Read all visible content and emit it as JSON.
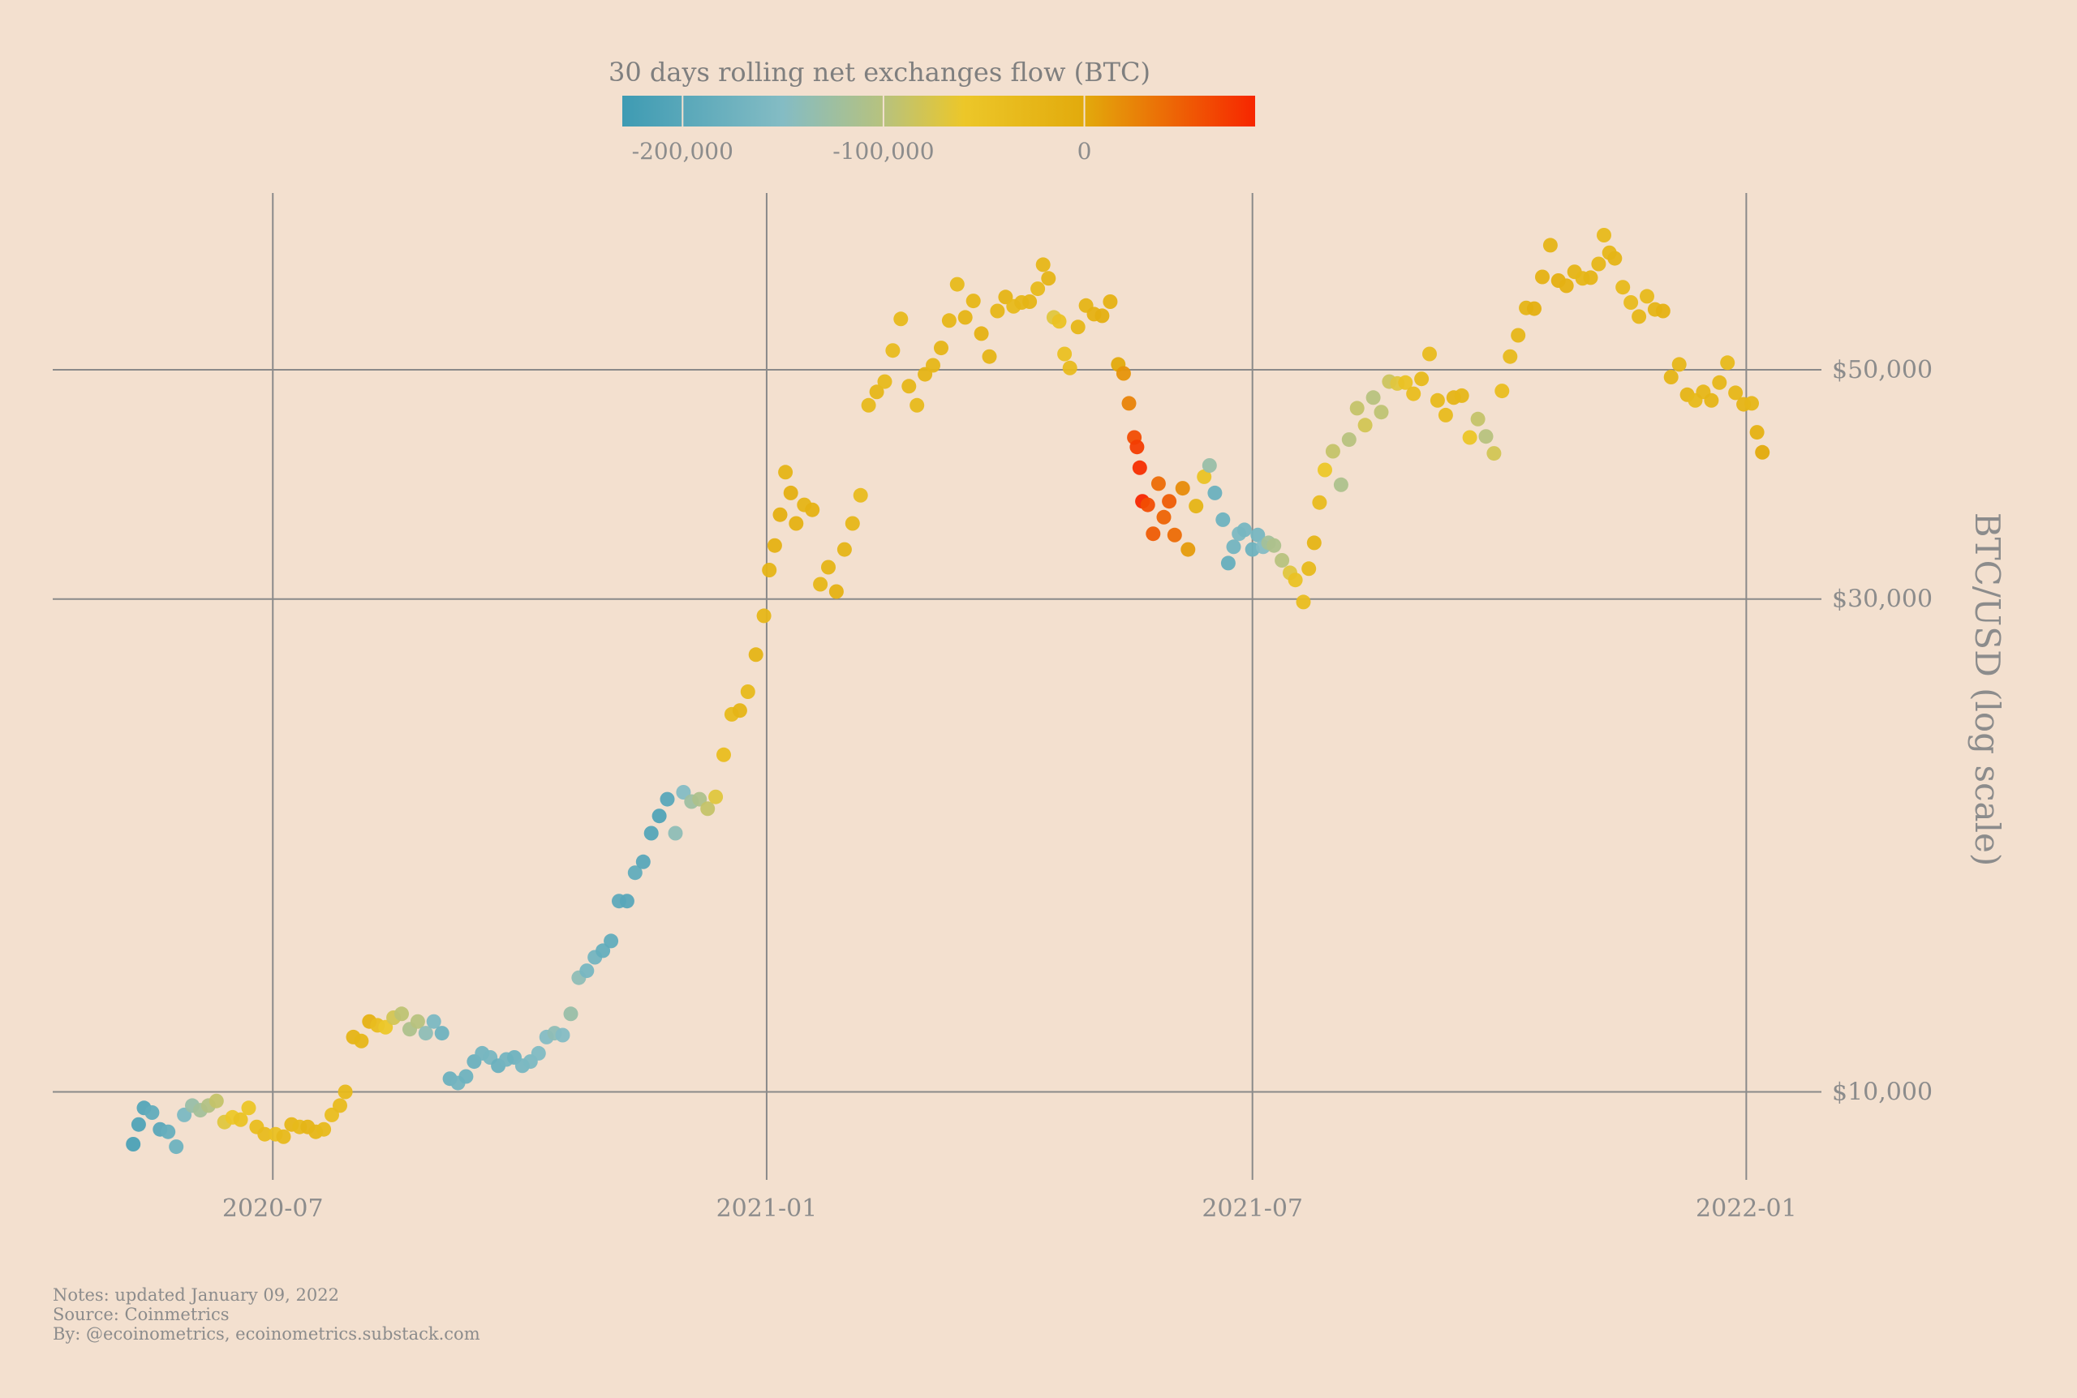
{
  "chart_data": {
    "type": "scatter",
    "colorbar": {
      "title": "30 days rolling net exchanges flow (BTC)",
      "ticks": [
        {
          "value": -200000,
          "label": "-200,000"
        },
        {
          "value": -100000,
          "label": "-100,000"
        },
        {
          "value": 0,
          "label": "0"
        }
      ],
      "range": [
        -230000,
        85000
      ],
      "stops": [
        {
          "value": -230000,
          "color": "#3e9bb3"
        },
        {
          "value": -150000,
          "color": "#84bcc4"
        },
        {
          "value": -100000,
          "color": "#b7c27e"
        },
        {
          "value": -60000,
          "color": "#ecc729"
        },
        {
          "value": 0,
          "color": "#e2aa0c"
        },
        {
          "value": 40000,
          "color": "#ec6c06"
        },
        {
          "value": 85000,
          "color": "#f72600"
        }
      ]
    },
    "x_ticks": [
      {
        "date": "2020-07-01",
        "label": "2020-07"
      },
      {
        "date": "2021-01-01",
        "label": "2021-01"
      },
      {
        "date": "2021-07-01",
        "label": "2021-07"
      },
      {
        "date": "2022-01-01",
        "label": "2022-01"
      }
    ],
    "y_ticks": [
      {
        "value": 10000,
        "label": "$10,000"
      },
      {
        "value": 30000,
        "label": "$30,000"
      },
      {
        "value": 50000,
        "label": "$50,000"
      }
    ],
    "ylabel": "BTC/USD (log scale)",
    "yscale": "log",
    "xlim": [
      "2020-04-10",
      "2022-01-29"
    ],
    "ylim": [
      8600,
      67500
    ],
    "grid": true,
    "points": [
      [
        "2020-05-10",
        8900,
        -215000
      ],
      [
        "2020-05-12",
        9300,
        -210000
      ],
      [
        "2020-05-14",
        9650,
        -205000
      ],
      [
        "2020-05-17",
        9550,
        -190000
      ],
      [
        "2020-05-20",
        9200,
        -200000
      ],
      [
        "2020-05-23",
        9150,
        -185000
      ],
      [
        "2020-05-26",
        8850,
        -175000
      ],
      [
        "2020-05-29",
        9500,
        -160000
      ],
      [
        "2020-06-01",
        9700,
        -130000
      ],
      [
        "2020-06-04",
        9600,
        -120000
      ],
      [
        "2020-06-07",
        9700,
        -105000
      ],
      [
        "2020-06-10",
        9800,
        -90000
      ],
      [
        "2020-06-13",
        9350,
        -70000
      ],
      [
        "2020-06-16",
        9450,
        -60000
      ],
      [
        "2020-06-19",
        9400,
        -50000
      ],
      [
        "2020-06-22",
        9650,
        -55000
      ],
      [
        "2020-06-25",
        9250,
        -40000
      ],
      [
        "2020-06-28",
        9100,
        -35000
      ],
      [
        "2020-07-02",
        9100,
        -45000
      ],
      [
        "2020-07-05",
        9050,
        -30000
      ],
      [
        "2020-07-08",
        9300,
        -25000
      ],
      [
        "2020-07-11",
        9250,
        -30000
      ],
      [
        "2020-07-14",
        9250,
        -20000
      ],
      [
        "2020-07-17",
        9150,
        -25000
      ],
      [
        "2020-07-20",
        9200,
        -30000
      ],
      [
        "2020-07-23",
        9500,
        -40000
      ],
      [
        "2020-07-26",
        9700,
        -35000
      ],
      [
        "2020-07-28",
        10000,
        -30000
      ],
      [
        "2020-07-31",
        11300,
        -20000
      ],
      [
        "2020-08-03",
        11200,
        -25000
      ],
      [
        "2020-08-06",
        11700,
        -15000
      ],
      [
        "2020-08-09",
        11600,
        -40000
      ],
      [
        "2020-08-12",
        11550,
        -60000
      ],
      [
        "2020-08-15",
        11800,
        -80000
      ],
      [
        "2020-08-18",
        11900,
        -95000
      ],
      [
        "2020-08-21",
        11500,
        -110000
      ],
      [
        "2020-08-24",
        11700,
        -100000
      ],
      [
        "2020-08-27",
        11400,
        -140000
      ],
      [
        "2020-08-30",
        11700,
        -160000
      ],
      [
        "2020-09-02",
        11400,
        -175000
      ],
      [
        "2020-09-05",
        10300,
        -180000
      ],
      [
        "2020-09-08",
        10200,
        -170000
      ],
      [
        "2020-09-11",
        10350,
        -175000
      ],
      [
        "2020-09-14",
        10700,
        -180000
      ],
      [
        "2020-09-17",
        10900,
        -170000
      ],
      [
        "2020-09-20",
        10800,
        -165000
      ],
      [
        "2020-09-23",
        10600,
        -180000
      ],
      [
        "2020-09-26",
        10750,
        -170000
      ],
      [
        "2020-09-29",
        10800,
        -175000
      ],
      [
        "2020-10-02",
        10600,
        -165000
      ],
      [
        "2020-10-05",
        10700,
        -160000
      ],
      [
        "2020-10-08",
        10900,
        -155000
      ],
      [
        "2020-10-11",
        11300,
        -150000
      ],
      [
        "2020-10-14",
        11400,
        -140000
      ],
      [
        "2020-10-17",
        11350,
        -150000
      ],
      [
        "2020-10-20",
        11900,
        -130000
      ],
      [
        "2020-10-23",
        12900,
        -140000
      ],
      [
        "2020-10-26",
        13100,
        -165000
      ],
      [
        "2020-10-29",
        13500,
        -170000
      ],
      [
        "2020-11-01",
        13700,
        -185000
      ],
      [
        "2020-11-04",
        14000,
        -190000
      ],
      [
        "2020-11-07",
        15300,
        -195000
      ],
      [
        "2020-11-10",
        15300,
        -200000
      ],
      [
        "2020-11-13",
        16300,
        -190000
      ],
      [
        "2020-11-16",
        16700,
        -200000
      ],
      [
        "2020-11-19",
        17800,
        -205000
      ],
      [
        "2020-11-22",
        18500,
        -210000
      ],
      [
        "2020-11-25",
        19200,
        -200000
      ],
      [
        "2020-11-28",
        17800,
        -140000
      ],
      [
        "2020-12-01",
        19500,
        -150000
      ],
      [
        "2020-12-04",
        19100,
        -125000
      ],
      [
        "2020-12-07",
        19200,
        -110000
      ],
      [
        "2020-12-10",
        18800,
        -90000
      ],
      [
        "2020-12-13",
        19300,
        -70000
      ],
      [
        "2020-12-16",
        21200,
        -40000
      ],
      [
        "2020-12-19",
        23200,
        -30000
      ],
      [
        "2020-12-22",
        23400,
        -20000
      ],
      [
        "2020-12-25",
        24400,
        -30000
      ],
      [
        "2020-12-28",
        26500,
        -20000
      ],
      [
        "2020-12-31",
        28900,
        -25000
      ],
      [
        "2021-01-02",
        32000,
        -20000
      ],
      [
        "2021-01-04",
        33800,
        -15000
      ],
      [
        "2021-01-06",
        36200,
        -10000
      ],
      [
        "2021-01-08",
        39800,
        -20000
      ],
      [
        "2021-01-10",
        38000,
        -10000
      ],
      [
        "2021-01-12",
        35500,
        -15000
      ],
      [
        "2021-01-15",
        37000,
        -20000
      ],
      [
        "2021-01-18",
        36600,
        -15000
      ],
      [
        "2021-01-21",
        31000,
        -25000
      ],
      [
        "2021-01-24",
        32200,
        -20000
      ],
      [
        "2021-01-27",
        30500,
        -15000
      ],
      [
        "2021-01-30",
        33500,
        -20000
      ],
      [
        "2021-02-02",
        35500,
        -25000
      ],
      [
        "2021-02-05",
        37800,
        -35000
      ],
      [
        "2021-02-08",
        46200,
        -30000
      ],
      [
        "2021-02-11",
        47600,
        -25000
      ],
      [
        "2021-02-14",
        48700,
        -30000
      ],
      [
        "2021-02-17",
        52200,
        -35000
      ],
      [
        "2021-02-20",
        56000,
        -30000
      ],
      [
        "2021-02-23",
        48200,
        -25000
      ],
      [
        "2021-02-26",
        46200,
        -30000
      ],
      [
        "2021-03-01",
        49500,
        -20000
      ],
      [
        "2021-03-04",
        50500,
        -25000
      ],
      [
        "2021-03-07",
        52500,
        -20000
      ],
      [
        "2021-03-10",
        55800,
        -25000
      ],
      [
        "2021-03-13",
        60500,
        -30000
      ],
      [
        "2021-03-16",
        56200,
        -20000
      ],
      [
        "2021-03-19",
        58300,
        -25000
      ],
      [
        "2021-03-22",
        54200,
        -15000
      ],
      [
        "2021-03-25",
        51500,
        -20000
      ],
      [
        "2021-03-28",
        57000,
        -25000
      ],
      [
        "2021-03-31",
        58800,
        -20000
      ],
      [
        "2021-04-03",
        57600,
        -30000
      ],
      [
        "2021-04-06",
        58100,
        -25000
      ],
      [
        "2021-04-09",
        58200,
        -20000
      ],
      [
        "2021-04-12",
        59900,
        -30000
      ],
      [
        "2021-04-14",
        63200,
        -25000
      ],
      [
        "2021-04-16",
        61300,
        -20000
      ],
      [
        "2021-04-18",
        56200,
        -70000
      ],
      [
        "2021-04-20",
        55700,
        -50000
      ],
      [
        "2021-04-22",
        51800,
        -45000
      ],
      [
        "2021-04-24",
        50200,
        -35000
      ],
      [
        "2021-04-27",
        55000,
        -25000
      ],
      [
        "2021-04-30",
        57700,
        -20000
      ],
      [
        "2021-05-03",
        56600,
        -15000
      ],
      [
        "2021-05-06",
        56400,
        -10000
      ],
      [
        "2021-05-09",
        58200,
        -15000
      ],
      [
        "2021-05-12",
        50600,
        0
      ],
      [
        "2021-05-14",
        49600,
        15000
      ],
      [
        "2021-05-16",
        46400,
        25000
      ],
      [
        "2021-05-18",
        43000,
        60000
      ],
      [
        "2021-05-19",
        42100,
        70000
      ],
      [
        "2021-05-20",
        40200,
        80000
      ],
      [
        "2021-05-21",
        37300,
        85000
      ],
      [
        "2021-05-23",
        37000,
        60000
      ],
      [
        "2021-05-25",
        34700,
        50000
      ],
      [
        "2021-05-27",
        38800,
        40000
      ],
      [
        "2021-05-29",
        36000,
        45000
      ],
      [
        "2021-05-31",
        37300,
        50000
      ],
      [
        "2021-06-02",
        34600,
        40000
      ],
      [
        "2021-06-05",
        38400,
        20000
      ],
      [
        "2021-06-07",
        33500,
        10000
      ],
      [
        "2021-06-10",
        36900,
        -20000
      ],
      [
        "2021-06-13",
        39400,
        -50000
      ],
      [
        "2021-06-15",
        40400,
        -130000
      ],
      [
        "2021-06-17",
        38000,
        -180000
      ],
      [
        "2021-06-20",
        35800,
        -175000
      ],
      [
        "2021-06-22",
        32500,
        -185000
      ],
      [
        "2021-06-24",
        33700,
        -170000
      ],
      [
        "2021-06-26",
        34700,
        -160000
      ],
      [
        "2021-06-28",
        35000,
        -165000
      ],
      [
        "2021-07-01",
        33500,
        -175000
      ],
      [
        "2021-07-03",
        34600,
        -165000
      ],
      [
        "2021-07-05",
        33700,
        -150000
      ],
      [
        "2021-07-07",
        34000,
        -120000
      ],
      [
        "2021-07-09",
        33800,
        -110000
      ],
      [
        "2021-07-12",
        32700,
        -100000
      ],
      [
        "2021-07-15",
        31800,
        -70000
      ],
      [
        "2021-07-17",
        31300,
        -50000
      ],
      [
        "2021-07-20",
        29800,
        -40000
      ],
      [
        "2021-07-22",
        32100,
        -30000
      ],
      [
        "2021-07-24",
        34000,
        -20000
      ],
      [
        "2021-07-26",
        37200,
        -35000
      ],
      [
        "2021-07-28",
        40000,
        -60000
      ],
      [
        "2021-07-31",
        41700,
        -90000
      ],
      [
        "2021-08-03",
        38700,
        -110000
      ],
      [
        "2021-08-06",
        42800,
        -100000
      ],
      [
        "2021-08-09",
        45900,
        -90000
      ],
      [
        "2021-08-12",
        44200,
        -80000
      ],
      [
        "2021-08-15",
        47000,
        -100000
      ],
      [
        "2021-08-18",
        45500,
        -95000
      ],
      [
        "2021-08-21",
        48700,
        -85000
      ],
      [
        "2021-08-24",
        48500,
        -70000
      ],
      [
        "2021-08-27",
        48600,
        -50000
      ],
      [
        "2021-08-30",
        47400,
        -40000
      ],
      [
        "2021-09-02",
        49000,
        -30000
      ],
      [
        "2021-09-05",
        51800,
        -35000
      ],
      [
        "2021-09-08",
        46700,
        -30000
      ],
      [
        "2021-09-11",
        45200,
        -35000
      ],
      [
        "2021-09-14",
        47000,
        -20000
      ],
      [
        "2021-09-17",
        47200,
        -25000
      ],
      [
        "2021-09-20",
        43000,
        -55000
      ],
      [
        "2021-09-23",
        44800,
        -90000
      ],
      [
        "2021-09-26",
        43100,
        -100000
      ],
      [
        "2021-09-29",
        41500,
        -80000
      ],
      [
        "2021-10-02",
        47700,
        -40000
      ],
      [
        "2021-10-05",
        51500,
        -30000
      ],
      [
        "2021-10-08",
        54000,
        -25000
      ],
      [
        "2021-10-11",
        57400,
        -20000
      ],
      [
        "2021-10-14",
        57300,
        -10000
      ],
      [
        "2021-10-17",
        61500,
        -15000
      ],
      [
        "2021-10-20",
        66000,
        -20000
      ],
      [
        "2021-10-23",
        61000,
        -10000
      ],
      [
        "2021-10-26",
        60300,
        -15000
      ],
      [
        "2021-10-29",
        62200,
        -20000
      ],
      [
        "2021-11-01",
        61300,
        -25000
      ],
      [
        "2021-11-04",
        61400,
        -20000
      ],
      [
        "2021-11-07",
        63300,
        -25000
      ],
      [
        "2021-11-09",
        67500,
        -30000
      ],
      [
        "2021-11-11",
        64900,
        -25000
      ],
      [
        "2021-11-13",
        64100,
        -20000
      ],
      [
        "2021-11-16",
        60100,
        -30000
      ],
      [
        "2021-11-19",
        58100,
        -35000
      ],
      [
        "2021-11-22",
        56300,
        -25000
      ],
      [
        "2021-11-25",
        58900,
        -30000
      ],
      [
        "2021-11-28",
        57200,
        -20000
      ],
      [
        "2021-12-01",
        57000,
        -15000
      ],
      [
        "2021-12-04",
        49200,
        -20000
      ],
      [
        "2021-12-07",
        50600,
        -25000
      ],
      [
        "2021-12-10",
        47300,
        -20000
      ],
      [
        "2021-12-13",
        46700,
        -30000
      ],
      [
        "2021-12-16",
        47600,
        -25000
      ],
      [
        "2021-12-19",
        46700,
        -20000
      ],
      [
        "2021-12-22",
        48600,
        -25000
      ],
      [
        "2021-12-25",
        50800,
        -30000
      ],
      [
        "2021-12-28",
        47500,
        -25000
      ],
      [
        "2021-12-31",
        46300,
        -20000
      ],
      [
        "2022-01-03",
        46400,
        -25000
      ],
      [
        "2022-01-05",
        43500,
        -15000
      ],
      [
        "2022-01-07",
        41600,
        0
      ]
    ]
  },
  "notes": {
    "line1": "Notes: updated January 09, 2022",
    "line2": "Source: Coinmetrics",
    "line3": "By: @ecoinometrics, ecoinometrics.substack.com"
  }
}
